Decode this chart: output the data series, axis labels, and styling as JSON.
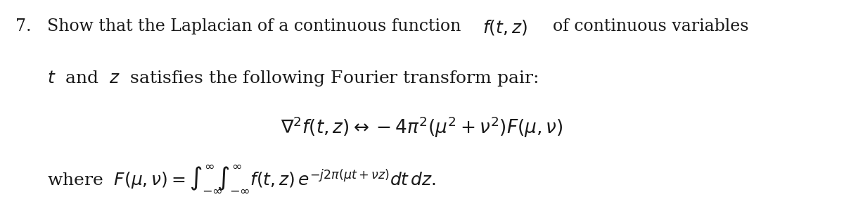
{
  "background_color": "#ffffff",
  "figsize": [
    12.0,
    2.8
  ],
  "dpi": 100,
  "font_size_main": 17,
  "font_size_math": 18,
  "text_color": "#1a1a1a"
}
